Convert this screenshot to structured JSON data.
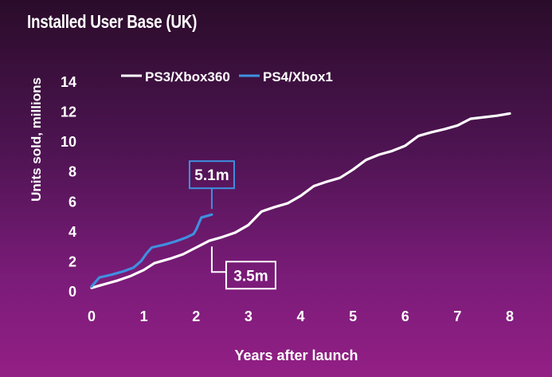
{
  "chart_data": {
    "type": "line",
    "title": "Installed User Base (UK)",
    "xlabel": "Years after launch",
    "ylabel": "Units sold, millions",
    "xlim": [
      0,
      8
    ],
    "ylim": [
      0,
      14
    ],
    "xticks": [
      0,
      1,
      2,
      3,
      4,
      5,
      6,
      7,
      8
    ],
    "yticks": [
      0,
      2,
      4,
      6,
      8,
      10,
      12,
      14
    ],
    "grid": false,
    "legend": "top",
    "series": [
      {
        "name": "PS3/Xbox360",
        "color": "#ffffff",
        "x": [
          0,
          0.25,
          0.5,
          0.75,
          1.0,
          1.2,
          1.5,
          1.75,
          2.0,
          2.25,
          2.5,
          2.75,
          3.0,
          3.25,
          3.5,
          3.75,
          4.0,
          4.25,
          4.5,
          4.75,
          5.0,
          5.25,
          5.5,
          5.75,
          6.0,
          6.25,
          6.5,
          6.75,
          7.0,
          7.25,
          7.5,
          7.75,
          8.0
        ],
        "y": [
          0.2,
          0.45,
          0.7,
          1.0,
          1.4,
          1.85,
          2.15,
          2.45,
          2.9,
          3.35,
          3.6,
          3.9,
          4.4,
          5.3,
          5.6,
          5.85,
          6.35,
          7.0,
          7.3,
          7.55,
          8.1,
          8.75,
          9.1,
          9.35,
          9.7,
          10.35,
          10.6,
          10.8,
          11.05,
          11.5,
          11.6,
          11.7,
          11.85
        ]
      },
      {
        "name": "PS4/Xbox1",
        "color": "#3f8fe0",
        "x": [
          0,
          0.15,
          0.4,
          0.6,
          0.8,
          0.95,
          1.05,
          1.15,
          1.4,
          1.6,
          1.8,
          1.95,
          2.0,
          2.05,
          2.1,
          2.2,
          2.3
        ],
        "y": [
          0.3,
          0.9,
          1.1,
          1.3,
          1.55,
          2.0,
          2.5,
          2.9,
          3.1,
          3.3,
          3.55,
          3.8,
          4.1,
          4.5,
          4.9,
          5.0,
          5.1
        ]
      }
    ],
    "annotations": [
      {
        "label": "5.1m",
        "series": "PS4/Xbox1",
        "x": 2.3,
        "y": 5.1,
        "color": "#3f8fe0"
      },
      {
        "label": "3.5m",
        "series": "PS3/Xbox360",
        "x": 2.3,
        "y": 3.5,
        "color": "#ffffff"
      }
    ]
  }
}
